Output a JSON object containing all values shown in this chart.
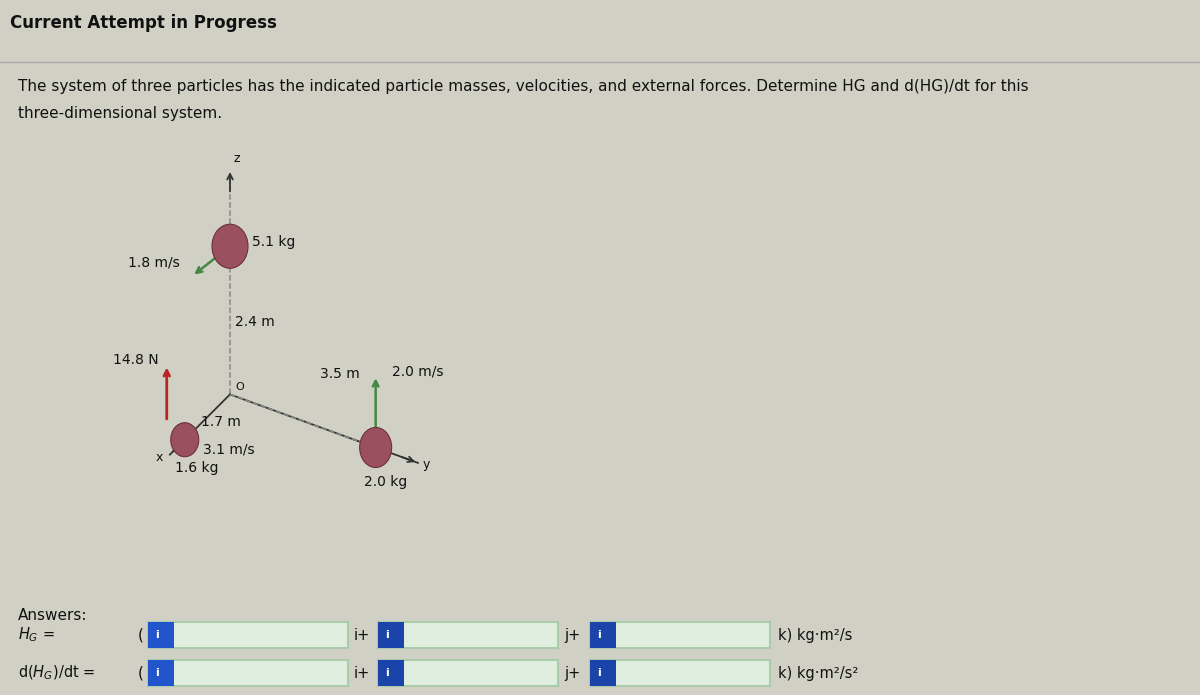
{
  "title": "Current Attempt in Progress",
  "prob_line1": "The system of three particles has the indicated particle masses, velocities, and external forces. Determine HG and d(HG)/dt for this",
  "prob_line2": "three-dimensional system.",
  "bg_top": "#deded4",
  "bg_main": "#d0d0c4",
  "bg_bottom": "#c8c8bc",
  "header_bg": "#e8e8e0",
  "sep_color": "#aaaaaa",
  "particle_color": "#9B5060",
  "particle_edge": "#6a3040",
  "force_color": "#bb2222",
  "vel_color": "#448844",
  "axis_color": "#333333",
  "dash_color": "#888888",
  "text_color": "#111111",
  "input_bg": "#e0eee0",
  "input_border": "#aaccaa",
  "tab_color": "#2255cc",
  "tab_dark": "#1a44aa",
  "p1_mass": "5.1 kg",
  "p1_vel": "1.8 m/s",
  "p2_mass": "1.6 kg",
  "p2_vel": "3.1 m/s",
  "p3_mass": "2.0 kg",
  "p3_vel": "2.0 m/s",
  "force_val": "14.8 N",
  "dim_z": "2.4 m",
  "dim_y": "3.5 m",
  "dim_x": "1.7 m",
  "answers_lbl": "Answers:",
  "hg_lbl": "HG =",
  "dhg_lbl": "d(HG)/dt =",
  "u_hg": "k) kg·m²/s",
  "u_dhg": "k) kg·m²/s²",
  "fig_w": 12.0,
  "fig_h": 6.95,
  "dpi": 100
}
